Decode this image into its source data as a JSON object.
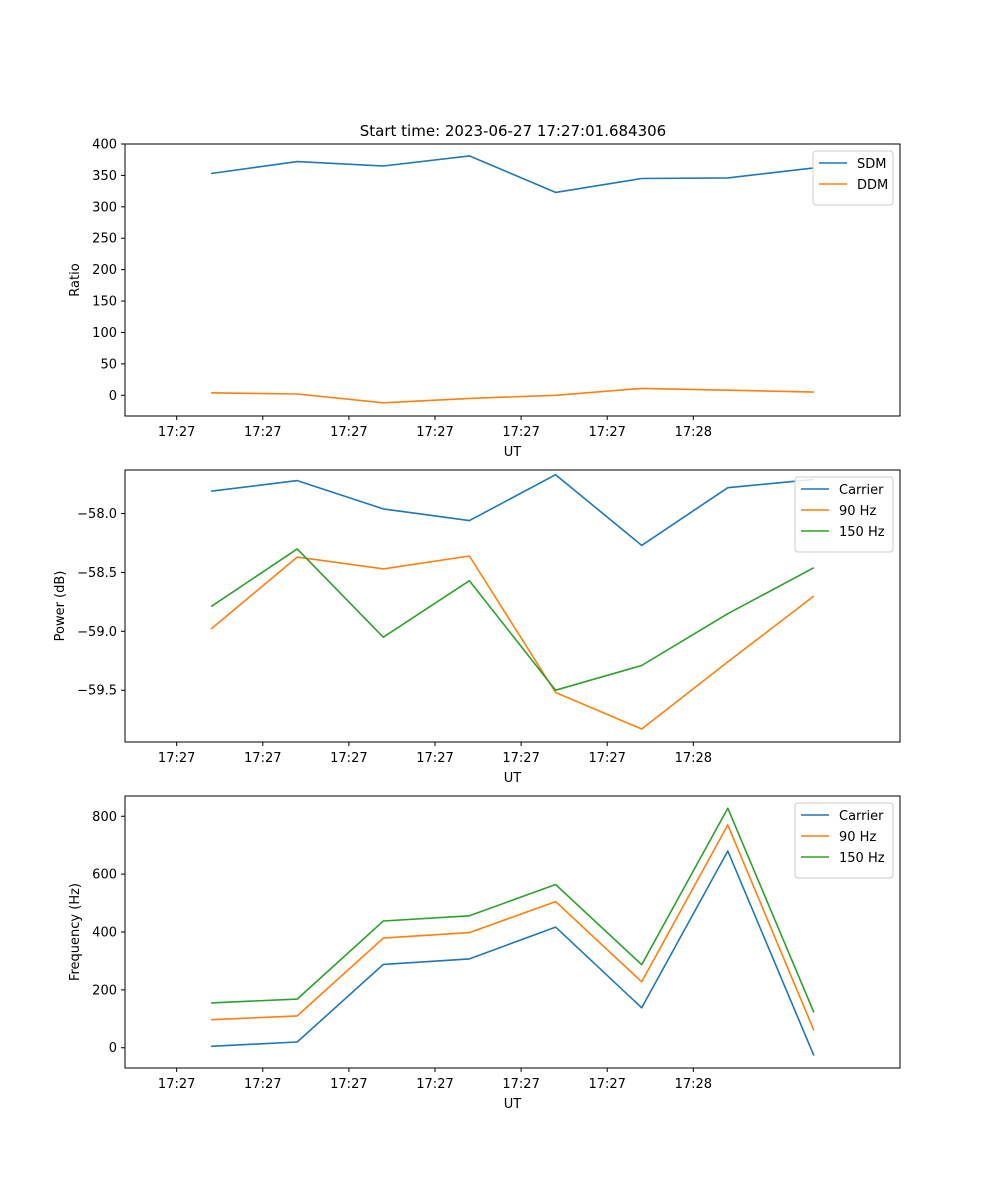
{
  "figure_title": "Start time: 2023-06-27 17:27:01.684306",
  "chart_data": [
    {
      "type": "line",
      "xlabel": "UT",
      "ylabel": "Ratio",
      "x_tick_labels": [
        "17:27",
        "17:27",
        "17:27",
        "17:27",
        "17:27",
        "17:27",
        "17:28"
      ],
      "xlim": [
        -0.6,
        8.4
      ],
      "ylim": [
        -33,
        400
      ],
      "y_ticks": [
        0,
        50,
        100,
        150,
        200,
        250,
        300,
        350,
        400
      ],
      "y_tick_labels": [
        "0",
        "50",
        "100",
        "150",
        "200",
        "250",
        "300",
        "350",
        "400"
      ],
      "legend_position": "top-right",
      "x": [
        0.4,
        1.4,
        2.4,
        3.4,
        4.4,
        5.4,
        6.4,
        7.4
      ],
      "series": [
        {
          "name": "SDM",
          "color": "#1f77b4",
          "values": [
            353,
            372,
            365,
            381,
            323,
            345,
            346,
            362
          ]
        },
        {
          "name": "DDM",
          "color": "#ff7f0e",
          "values": [
            4,
            2,
            -12,
            -5,
            0,
            11,
            8,
            5
          ]
        }
      ]
    },
    {
      "type": "line",
      "xlabel": "UT",
      "ylabel": "Power (dB)",
      "x_tick_labels": [
        "17:27",
        "17:27",
        "17:27",
        "17:27",
        "17:27",
        "17:27",
        "17:28"
      ],
      "xlim": [
        -0.6,
        8.4
      ],
      "ylim": [
        -59.94,
        -57.63
      ],
      "y_ticks": [
        -58.0,
        -58.5,
        -59.0,
        -59.5
      ],
      "y_tick_labels": [
        "−58.0",
        "−58.5",
        "−59.0",
        "−59.5"
      ],
      "legend_position": "top-right",
      "x": [
        0.4,
        1.4,
        2.4,
        3.4,
        4.4,
        5.4,
        6.4,
        7.4
      ],
      "series": [
        {
          "name": "Carrier",
          "color": "#1f77b4",
          "values": [
            -57.81,
            -57.72,
            -57.96,
            -58.06,
            -57.67,
            -58.27,
            -57.78,
            -57.71
          ]
        },
        {
          "name": "90 Hz",
          "color": "#ff7f0e",
          "values": [
            -58.98,
            -58.37,
            -58.47,
            -58.36,
            -59.52,
            -59.83,
            -59.26,
            -58.7
          ]
        },
        {
          "name": "150 Hz",
          "color": "#2ca02c",
          "values": [
            -58.79,
            -58.3,
            -59.05,
            -58.57,
            -59.5,
            -59.29,
            -58.85,
            -58.46
          ]
        }
      ]
    },
    {
      "type": "line",
      "xlabel": "UT",
      "ylabel": "Frequency (Hz)",
      "x_tick_labels": [
        "17:27",
        "17:27",
        "17:27",
        "17:27",
        "17:27",
        "17:27",
        "17:28"
      ],
      "xlim": [
        -0.6,
        8.4
      ],
      "ylim": [
        -70,
        870
      ],
      "y_ticks": [
        0,
        200,
        400,
        600,
        800
      ],
      "y_tick_labels": [
        "0",
        "200",
        "400",
        "600",
        "800"
      ],
      "legend_position": "top-right",
      "x": [
        0.4,
        1.4,
        2.4,
        3.4,
        4.4,
        5.4,
        6.4,
        7.4
      ],
      "series": [
        {
          "name": "Carrier",
          "color": "#1f77b4",
          "values": [
            5,
            20,
            288,
            307,
            417,
            138,
            680,
            -27
          ]
        },
        {
          "name": "90 Hz",
          "color": "#ff7f0e",
          "values": [
            97,
            110,
            379,
            398,
            505,
            228,
            770,
            60
          ]
        },
        {
          "name": "150 Hz",
          "color": "#2ca02c",
          "values": [
            155,
            168,
            438,
            456,
            564,
            287,
            828,
            122
          ]
        }
      ]
    }
  ]
}
